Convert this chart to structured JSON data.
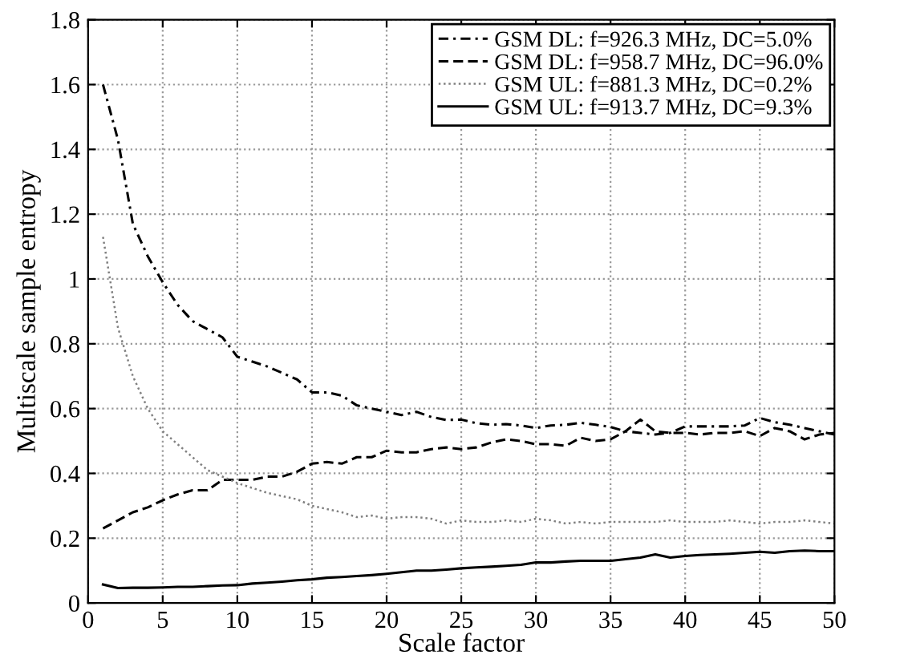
{
  "chart_data": {
    "type": "line",
    "xlabel": "Scale factor",
    "ylabel": "Multiscale sample entropy",
    "x": [
      1,
      2,
      3,
      4,
      5,
      6,
      7,
      8,
      9,
      10,
      11,
      12,
      13,
      14,
      15,
      16,
      17,
      18,
      19,
      20,
      21,
      22,
      23,
      24,
      25,
      26,
      27,
      28,
      29,
      30,
      31,
      32,
      33,
      34,
      35,
      36,
      37,
      38,
      39,
      40,
      41,
      42,
      43,
      44,
      45,
      46,
      47,
      48,
      49,
      50
    ],
    "series": [
      {
        "name": "GSM DL: f=926.3 MHz, DC=5.0%",
        "color": "#000000",
        "line_style": "dashdot",
        "values": [
          1.6,
          1.43,
          1.17,
          1.07,
          0.99,
          0.92,
          0.87,
          0.845,
          0.82,
          0.76,
          0.745,
          0.73,
          0.71,
          0.69,
          0.65,
          0.65,
          0.64,
          0.61,
          0.6,
          0.59,
          0.58,
          0.59,
          0.574,
          0.565,
          0.566,
          0.555,
          0.55,
          0.552,
          0.548,
          0.54,
          0.548,
          0.55,
          0.556,
          0.55,
          0.543,
          0.53,
          0.525,
          0.52,
          0.525,
          0.545,
          0.545,
          0.545,
          0.545,
          0.548,
          0.571,
          0.558,
          0.55,
          0.54,
          0.53,
          0.52
        ]
      },
      {
        "name": "GSM DL: f=958.7 MHz, DC=96.0%",
        "color": "#000000",
        "line_style": "dashed",
        "values": [
          0.23,
          0.255,
          0.28,
          0.295,
          0.317,
          0.335,
          0.348,
          0.348,
          0.38,
          0.38,
          0.38,
          0.39,
          0.39,
          0.405,
          0.43,
          0.435,
          0.43,
          0.45,
          0.45,
          0.47,
          0.465,
          0.465,
          0.475,
          0.48,
          0.475,
          0.48,
          0.495,
          0.505,
          0.5,
          0.49,
          0.49,
          0.485,
          0.51,
          0.5,
          0.505,
          0.53,
          0.566,
          0.53,
          0.525,
          0.525,
          0.52,
          0.525,
          0.525,
          0.53,
          0.515,
          0.54,
          0.53,
          0.505,
          0.52,
          0.525
        ]
      },
      {
        "name": "GSM UL: f=881.3 MHz, DC=0.2%",
        "color": "#808080",
        "line_style": "dotted",
        "values": [
          1.13,
          0.85,
          0.7,
          0.6,
          0.53,
          0.49,
          0.45,
          0.41,
          0.39,
          0.37,
          0.355,
          0.34,
          0.33,
          0.32,
          0.3,
          0.29,
          0.28,
          0.265,
          0.27,
          0.26,
          0.265,
          0.265,
          0.26,
          0.245,
          0.255,
          0.25,
          0.25,
          0.255,
          0.25,
          0.26,
          0.255,
          0.245,
          0.25,
          0.245,
          0.25,
          0.25,
          0.25,
          0.25,
          0.255,
          0.25,
          0.25,
          0.25,
          0.255,
          0.25,
          0.245,
          0.25,
          0.25,
          0.255,
          0.25,
          0.245
        ]
      },
      {
        "name": "GSM UL: f=913.7 MHz, DC=9.3%",
        "color": "#000000",
        "line_style": "solid",
        "values": [
          0.057,
          0.046,
          0.047,
          0.047,
          0.048,
          0.05,
          0.05,
          0.052,
          0.054,
          0.055,
          0.06,
          0.063,
          0.066,
          0.07,
          0.073,
          0.078,
          0.08,
          0.083,
          0.086,
          0.09,
          0.095,
          0.1,
          0.1,
          0.103,
          0.107,
          0.11,
          0.112,
          0.115,
          0.118,
          0.125,
          0.125,
          0.128,
          0.13,
          0.13,
          0.13,
          0.135,
          0.14,
          0.15,
          0.14,
          0.145,
          0.148,
          0.15,
          0.152,
          0.155,
          0.158,
          0.155,
          0.16,
          0.162,
          0.16,
          0.16
        ]
      }
    ],
    "xlim": [
      0,
      50
    ],
    "ylim": [
      0,
      1.8
    ],
    "xticks": [
      0,
      5,
      10,
      15,
      20,
      25,
      30,
      35,
      40,
      45,
      50
    ],
    "yticks": [
      0,
      0.2,
      0.4,
      0.6,
      0.8,
      1,
      1.2,
      1.4,
      1.6,
      1.8
    ],
    "grid": true,
    "legend": "top right"
  }
}
